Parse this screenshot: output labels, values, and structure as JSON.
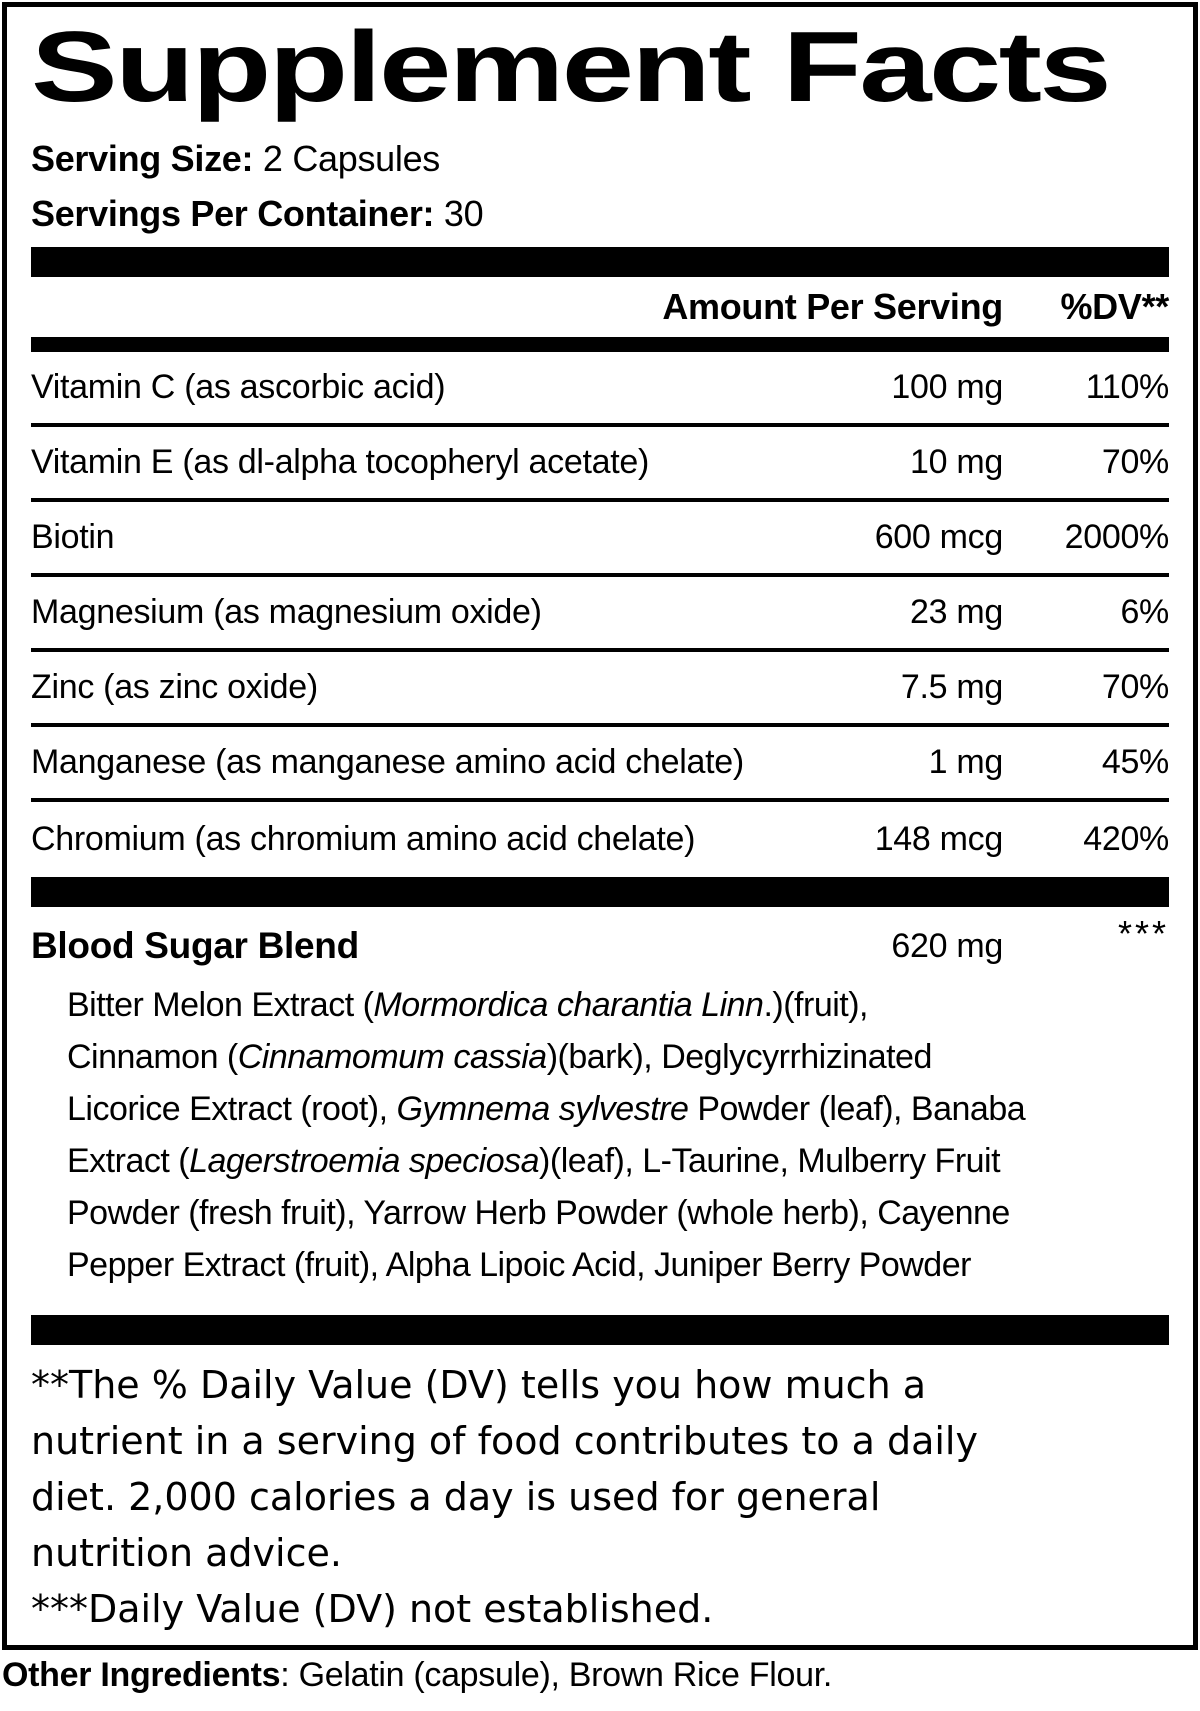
{
  "label": {
    "title": "Supplement Facts",
    "serving_size": {
      "label": "Serving Size:",
      "value": "2 Capsules"
    },
    "servings_per_container": {
      "label": "Servings Per Container:",
      "value": "30"
    },
    "columns": {
      "amount": "Amount Per Serving",
      "dv": "%DV**"
    },
    "nutrients": [
      {
        "name": "Vitamin C (as ascorbic acid)",
        "amount": "100 mg",
        "dv": "110%"
      },
      {
        "name": "Vitamin E (as dl-alpha tocopheryl acetate)",
        "amount": "10 mg",
        "dv": "70%"
      },
      {
        "name": "Biotin",
        "amount": "600 mcg",
        "dv": "2000%"
      },
      {
        "name": "Magnesium (as magnesium oxide)",
        "amount": "23 mg",
        "dv": "6%"
      },
      {
        "name": "Zinc (as zinc oxide)",
        "amount": "7.5 mg",
        "dv": "70%"
      },
      {
        "name": "Manganese (as manganese amino acid chelate)",
        "amount": "1 mg",
        "dv": "45%"
      },
      {
        "name": "Chromium (as chromium amino acid chelate)",
        "amount": "148 mcg",
        "dv": "420%"
      }
    ],
    "blend": {
      "name": "Blood Sugar Blend",
      "amount": "620 mg",
      "dv": "***",
      "lines": [
        {
          "segments": [
            {
              "text": "Bitter Melon Extract (",
              "italic": false
            },
            {
              "text": "Mormordica charantia Linn",
              "italic": true
            },
            {
              "text": ".)(fruit),",
              "italic": false
            }
          ]
        },
        {
          "segments": [
            {
              "text": "Cinnamon (",
              "italic": false
            },
            {
              "text": "Cinnamomum cassia",
              "italic": true
            },
            {
              "text": ")(bark), Deglycyrrhizinated",
              "italic": false
            }
          ]
        },
        {
          "segments": [
            {
              "text": "Licorice Extract (root), ",
              "italic": false
            },
            {
              "text": "Gymnema sylvestre",
              "italic": true
            },
            {
              "text": " Powder (leaf), Banaba",
              "italic": false
            }
          ]
        },
        {
          "segments": [
            {
              "text": "Extract (",
              "italic": false
            },
            {
              "text": "Lagerstroemia speciosa",
              "italic": true
            },
            {
              "text": ")(leaf), L-Taurine, Mulberry Fruit",
              "italic": false
            }
          ]
        },
        {
          "segments": [
            {
              "text": "Powder (fresh fruit), Yarrow Herb Powder (whole herb), Cayenne",
              "italic": false
            }
          ]
        },
        {
          "segments": [
            {
              "text": "Pepper Extract (fruit), Alpha Lipoic Acid, Juniper Berry Powder",
              "italic": false
            }
          ]
        }
      ]
    },
    "footnote_dv_lines": [
      "**The % Daily Value (DV) tells you how much a",
      "nutrient in a serving of food contributes to a daily",
      "diet. 2,000 calories a day is used for general",
      "nutrition advice."
    ],
    "footnote_not_established": "***Daily Value (DV) not established.",
    "other_ingredients": {
      "label": "Other Ingredients",
      "value": ": Gelatin (capsule), Brown Rice Flour."
    }
  },
  "colors": {
    "background": "#ffffff",
    "text": "#000000",
    "divider": "#000000"
  }
}
